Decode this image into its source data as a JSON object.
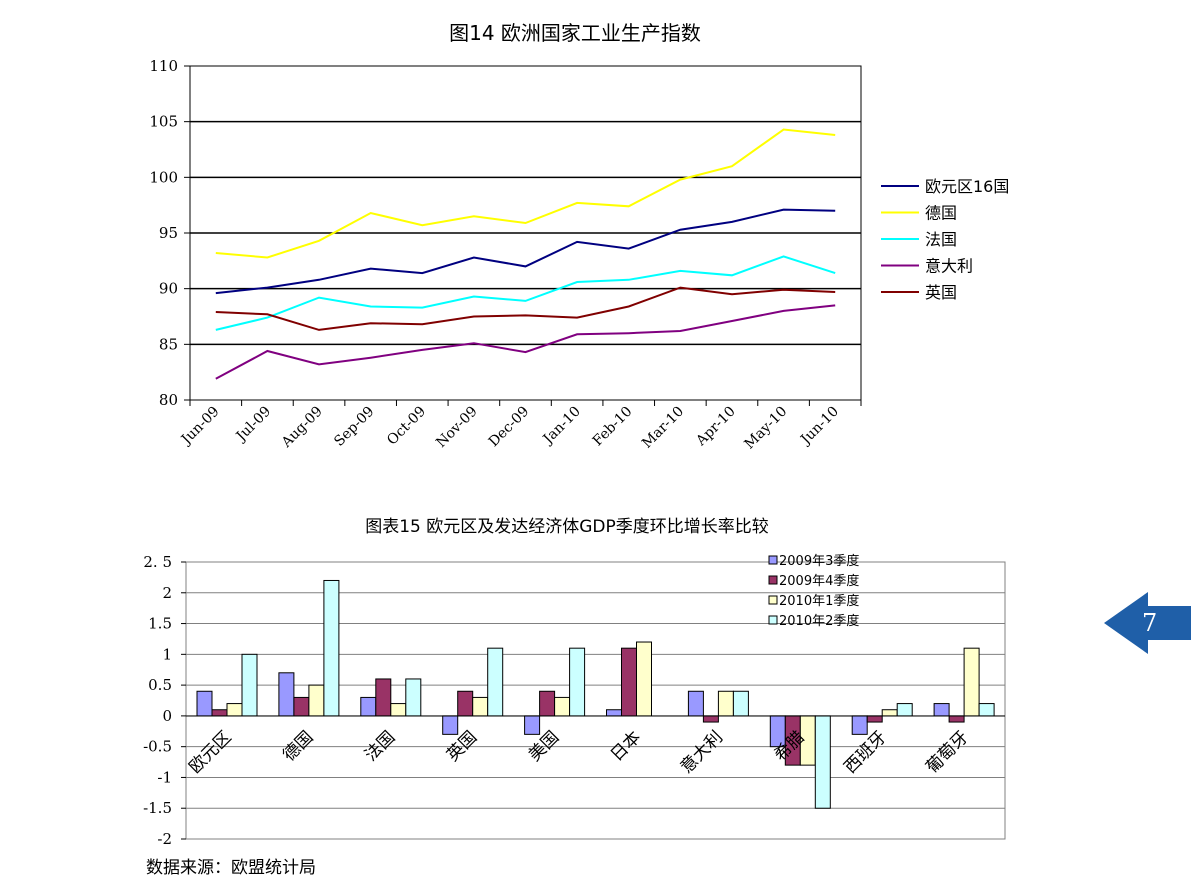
{
  "page": {
    "number": "7",
    "source_note": "数据来源：欧盟统计局"
  },
  "colors": {
    "badge": "#1f5fa8"
  },
  "chart_data": [
    {
      "type": "line",
      "title": "图14 欧洲国家工业生产指数",
      "categories": [
        "Jun-09",
        "Jul-09",
        "Aug-09",
        "Sep-09",
        "Oct-09",
        "Nov-09",
        "Dec-09",
        "Jan-10",
        "Feb-10",
        "Mar-10",
        "Apr-10",
        "May-10",
        "Jun-10"
      ],
      "ylim": [
        80,
        110
      ],
      "yticks": [
        80,
        85,
        90,
        95,
        100,
        105,
        110
      ],
      "grid": true,
      "legend": "right",
      "series": [
        {
          "name": "欧元区16国",
          "color": "#000080",
          "values": [
            89.6,
            90.1,
            90.8,
            91.8,
            91.4,
            92.8,
            92.0,
            94.2,
            93.6,
            95.3,
            96.0,
            97.1,
            97.0
          ]
        },
        {
          "name": "德国",
          "color": "#ffff00",
          "values": [
            93.2,
            92.8,
            94.3,
            96.8,
            95.7,
            96.5,
            95.9,
            97.7,
            97.4,
            99.8,
            101.0,
            104.3,
            103.8
          ]
        },
        {
          "name": "法国",
          "color": "#00ffff",
          "values": [
            86.3,
            87.4,
            89.2,
            88.4,
            88.3,
            89.3,
            88.9,
            90.6,
            90.8,
            91.6,
            91.2,
            92.9,
            91.4
          ]
        },
        {
          "name": "意大利",
          "color": "#800080",
          "values": [
            81.9,
            84.4,
            83.2,
            83.8,
            84.5,
            85.1,
            84.3,
            85.9,
            86.0,
            86.2,
            87.1,
            88.0,
            88.5
          ]
        },
        {
          "name": "英国",
          "color": "#800000",
          "values": [
            87.9,
            87.7,
            86.3,
            86.9,
            86.8,
            87.5,
            87.6,
            87.4,
            88.4,
            90.1,
            89.5,
            89.9,
            89.7
          ]
        }
      ]
    },
    {
      "type": "bar",
      "title": "图表15 欧元区及发达经济体GDP季度环比增长率比较",
      "categories": [
        "欧元区",
        "德国",
        "法国",
        "英国",
        "美国",
        "日本",
        "意大利",
        "希腊",
        "西班牙",
        "葡萄牙"
      ],
      "ylim": [
        -2,
        2.5
      ],
      "yticks": [
        "-2",
        "-1.5",
        "-1",
        "-0.5",
        "0",
        "0.5",
        "1",
        "1.5",
        "2",
        "2. 5"
      ],
      "grid": true,
      "legend": "top-right",
      "series": [
        {
          "name": "2009年3季度",
          "color": "#9999ff",
          "values": [
            0.4,
            0.7,
            0.3,
            -0.3,
            -0.3,
            0.1,
            0.4,
            -0.5,
            -0.3,
            0.2
          ]
        },
        {
          "name": "2009年4季度",
          "color": "#993366",
          "values": [
            0.1,
            0.3,
            0.6,
            0.4,
            0.4,
            1.1,
            -0.1,
            -0.8,
            -0.1,
            -0.1
          ]
        },
        {
          "name": "2010年1季度",
          "color": "#ffffcc",
          "values": [
            0.2,
            0.5,
            0.2,
            0.3,
            0.3,
            1.2,
            0.4,
            -0.8,
            0.1,
            1.1
          ]
        },
        {
          "name": "2010年2季度",
          "color": "#ccffff",
          "values": [
            1.0,
            2.2,
            0.6,
            1.1,
            1.1,
            null,
            0.4,
            -1.5,
            0.2,
            0.2
          ]
        }
      ]
    }
  ]
}
